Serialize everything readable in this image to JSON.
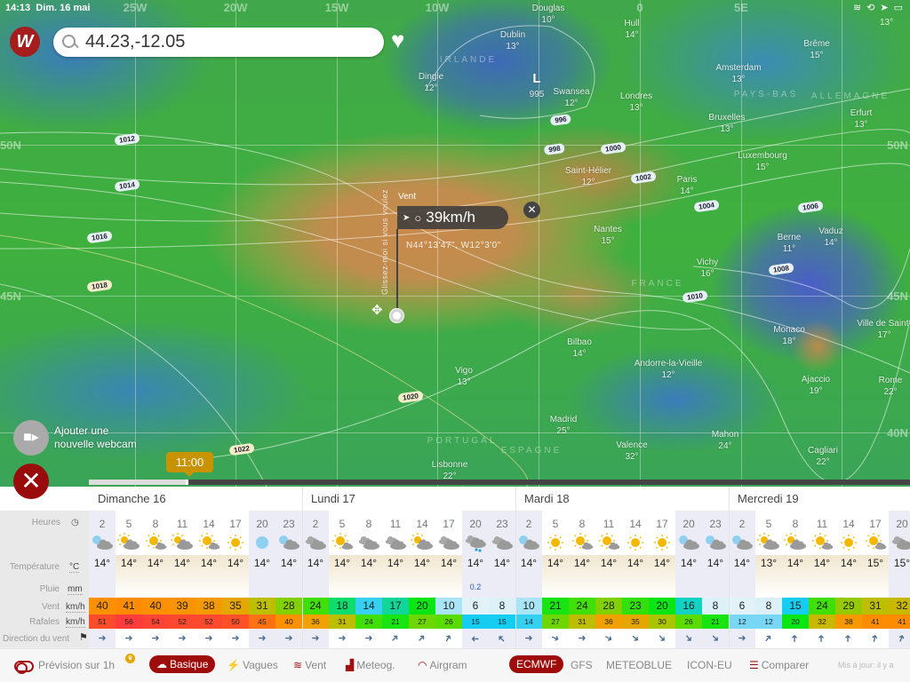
{
  "status_bar": {
    "time": "14:13",
    "date": "Dim. 16 mai",
    "right_temp": "13°"
  },
  "search": {
    "value": "44.23,-12.05"
  },
  "map": {
    "graticule": [
      "25W",
      "20W",
      "15W",
      "10W",
      "0",
      "5E",
      "50N",
      "45N",
      "50N",
      "45N",
      "40N"
    ],
    "cities": [
      {
        "name": "Douglas",
        "temp": "10°"
      },
      {
        "name": "Hull",
        "temp": "14°"
      },
      {
        "name": "Dublin",
        "temp": "13°"
      },
      {
        "name": "Dingle",
        "temp": "12°"
      },
      {
        "name": "Swansea",
        "temp": "12°"
      },
      {
        "name": "Londres",
        "temp": "13°"
      },
      {
        "name": "Amsterdam",
        "temp": "13°"
      },
      {
        "name": "Brême",
        "temp": "15°"
      },
      {
        "name": "Bruxelles",
        "temp": "13°"
      },
      {
        "name": "Erfurt",
        "temp": "13°"
      },
      {
        "name": "Luxembourg",
        "temp": "15°"
      },
      {
        "name": "Saint-Hélier",
        "temp": "12°"
      },
      {
        "name": "Paris",
        "temp": "14°"
      },
      {
        "name": "Nantes",
        "temp": "15°"
      },
      {
        "name": "Berne",
        "temp": "11°"
      },
      {
        "name": "Vaduz",
        "temp": "14°"
      },
      {
        "name": "Vichy",
        "temp": "16°"
      },
      {
        "name": "Monaco",
        "temp": "18°"
      },
      {
        "name": "Ville de Saint-",
        "temp": "17°"
      },
      {
        "name": "Bilbao",
        "temp": "14°"
      },
      {
        "name": "Andorre-la-Vieille",
        "temp": "12°"
      },
      {
        "name": "Ajaccio",
        "temp": "19°"
      },
      {
        "name": "Rome",
        "temp": "22°"
      },
      {
        "name": "Vigo",
        "temp": "13°"
      },
      {
        "name": "Madrid",
        "temp": "25°"
      },
      {
        "name": "Mahon",
        "temp": "24°"
      },
      {
        "name": "Valence",
        "temp": "32°"
      },
      {
        "name": "Cagliari",
        "temp": "22°"
      },
      {
        "name": "Lisbonne",
        "temp": "22°"
      }
    ],
    "countries": [
      "IRLANDE",
      "PAYS-BAS",
      "ALLEMAGNE",
      "FRANCE",
      "PORTUGAL",
      "ESPAGNE"
    ],
    "pressure_low": {
      "symbol": "L",
      "value": "995"
    },
    "isobars": [
      "1012",
      "1014",
      "1016",
      "1018",
      "1020",
      "1022",
      "996",
      "998",
      "1000",
      "1002",
      "1004",
      "1006",
      "1008",
      "1010"
    ],
    "popup": {
      "label": "Vent",
      "value": "39km/h",
      "coords": "N44°13'47\", W12°3'0\"",
      "drag_hint": "Glissez-moi si vous voulez"
    },
    "webcam_label": "Ajouter une nouvelle webcam",
    "timeline": {
      "time": "11:00",
      "progress_percent": 12
    }
  },
  "forecast": {
    "row_labels": {
      "hours": "Heures",
      "temperature": "Température",
      "temperature_unit": "°C",
      "rain": "Pluie",
      "rain_unit": "mm",
      "wind": "Vent",
      "wind_unit": "km/h",
      "gusts": "Rafales",
      "gusts_unit": "km/h",
      "direction": "Direction du vent"
    },
    "days": [
      {
        "label": "Dimanche 16",
        "hours": [
          2,
          5,
          8,
          11,
          14,
          17,
          20,
          23
        ],
        "icons": [
          "night-cloud",
          "sun-cloud",
          "sun-small-cloud",
          "sun-cloud",
          "sun-small-cloud",
          "sunny",
          "night",
          "night-cloud"
        ],
        "temp": [
          "14°",
          "14°",
          "14°",
          "14°",
          "14°",
          "14°",
          "14°",
          "14°"
        ],
        "rain": [
          "",
          "",
          "",
          "",
          "",
          "",
          "",
          ""
        ],
        "wind": [
          40,
          41,
          40,
          39,
          38,
          35,
          31,
          28
        ],
        "gusts": [
          51,
          56,
          54,
          52,
          52,
          50,
          45,
          40
        ],
        "dir": [
          0,
          0,
          0,
          0,
          0,
          0,
          0,
          0
        ]
      },
      {
        "label": "Lundi 17",
        "hours": [
          2,
          5,
          8,
          11,
          14,
          17,
          20,
          23
        ],
        "icons": [
          "cloudy",
          "sun-small-cloud",
          "cloudy",
          "cloudy",
          "sun-cloud",
          "cloudy",
          "rain",
          "cloudy"
        ],
        "temp": [
          "14°",
          "14°",
          "14°",
          "14°",
          "14°",
          "14°",
          "14°",
          "14°"
        ],
        "rain": [
          "",
          "",
          "",
          "",
          "",
          "",
          "0.2",
          ""
        ],
        "wind": [
          24,
          18,
          14,
          17,
          20,
          10,
          6,
          8
        ],
        "gusts": [
          36,
          31,
          24,
          21,
          27,
          26,
          15,
          15
        ],
        "dir": [
          0,
          0,
          0,
          -45,
          -45,
          -60,
          180,
          -135
        ]
      },
      {
        "label": "Mardi 18",
        "hours": [
          2,
          5,
          8,
          11,
          14,
          17,
          20,
          23
        ],
        "icons": [
          "night-cloud",
          "sunny",
          "sun-small-cloud",
          "sun-small-cloud",
          "sunny",
          "sunny",
          "night-cloud",
          "night-cloud"
        ],
        "temp": [
          "14°",
          "14°",
          "14°",
          "14°",
          "14°",
          "14°",
          "14°",
          "14°"
        ],
        "rain": [
          "",
          "",
          "",
          "",
          "",
          "",
          "",
          ""
        ],
        "wind": [
          10,
          21,
          24,
          28,
          23,
          20,
          16,
          8
        ],
        "gusts": [
          14,
          27,
          31,
          36,
          35,
          30,
          26,
          21
        ],
        "dir": [
          0,
          20,
          0,
          30,
          40,
          45,
          50,
          45
        ]
      },
      {
        "label": "Mercredi 19",
        "hours": [
          2,
          5,
          8,
          11,
          14,
          17,
          20
        ],
        "icons": [
          "night-cloud",
          "sun-cloud",
          "sun-cloud",
          "sun-small-cloud",
          "sunny",
          "sun-small-cloud",
          "cloudy"
        ],
        "temp": [
          "14°",
          "13°",
          "14°",
          "14°",
          "14°",
          "15°",
          "15°"
        ],
        "rain": [
          "",
          "",
          "",
          "",
          "",
          "",
          ""
        ],
        "wind": [
          6,
          8,
          15,
          24,
          29,
          31,
          32
        ],
        "gusts": [
          12,
          12,
          20,
          32,
          38,
          41,
          41
        ],
        "dir": [
          0,
          -50,
          -90,
          -90,
          -90,
          -80,
          -70
        ]
      }
    ]
  },
  "bottom_bar": {
    "hourly_toggle": "Prévision sur 1h",
    "modes": [
      {
        "label": "Basique",
        "active": true
      },
      {
        "label": "Vagues"
      },
      {
        "label": "Vent"
      },
      {
        "label": "Meteog."
      },
      {
        "label": "Airgram"
      }
    ],
    "models": [
      {
        "label": "ECMWF",
        "active": true
      },
      {
        "label": "GFS"
      },
      {
        "label": "METEOBLUE"
      },
      {
        "label": "ICON-EU"
      }
    ],
    "compare": "Comparer",
    "updated": "Mis à jour: il y a"
  },
  "colors": {
    "brand": "#9e0c0c",
    "timeline_bubble": "#c99300"
  }
}
